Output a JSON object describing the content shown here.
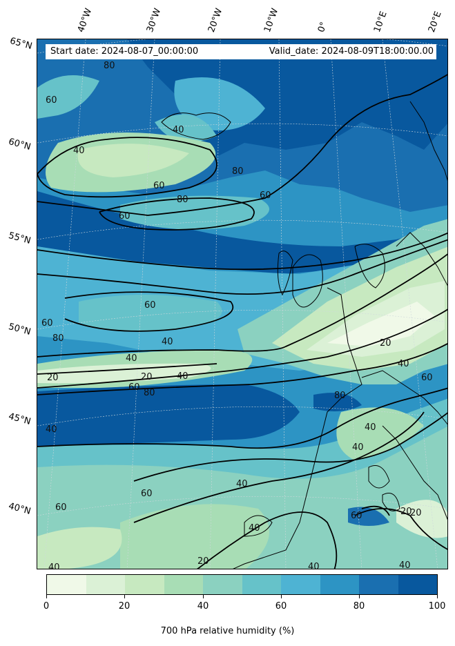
{
  "header": {
    "start_date": "Start date: 2024-08-07_00:00:00",
    "valid_date": "Valid_date: 2024-08-09T18:00:00.00"
  },
  "longitude_labels": [
    "40°W",
    "30°W",
    "20°W",
    "10°W",
    "0°",
    "10°E",
    "20°E"
  ],
  "latitude_labels": [
    "65°N",
    "60°N",
    "55°N",
    "50°N",
    "45°N",
    "40°N"
  ],
  "contour_labels": [
    "80",
    "60",
    "40",
    "80",
    "60",
    "40",
    "60",
    "80",
    "60",
    "60",
    "60",
    "40",
    "80",
    "40",
    "20",
    "40",
    "60",
    "80",
    "20",
    "40",
    "20",
    "60",
    "40",
    "40",
    "40",
    "60",
    "20",
    "40",
    "60",
    "60",
    "20",
    "40",
    "40",
    "40",
    "20",
    "40",
    "80"
  ],
  "colorbar": {
    "title": "700 hPa relative humidity (%)",
    "tick_labels": [
      "0",
      "20",
      "40",
      "60",
      "80",
      "100"
    ],
    "levels": [
      0,
      10,
      20,
      30,
      40,
      50,
      60,
      70,
      80,
      90,
      100
    ],
    "colors": [
      "#f0f9e8",
      "#dbf1d6",
      "#c7e9c0",
      "#a8ddb5",
      "#8bd1c0",
      "#66c2c9",
      "#4eb3d3",
      "#2d94c4",
      "#1a6fb0",
      "#08589e"
    ]
  },
  "colors": {
    "ocean_dark": "#08589e",
    "contour_line": "#000000",
    "coastline": "#000000"
  }
}
